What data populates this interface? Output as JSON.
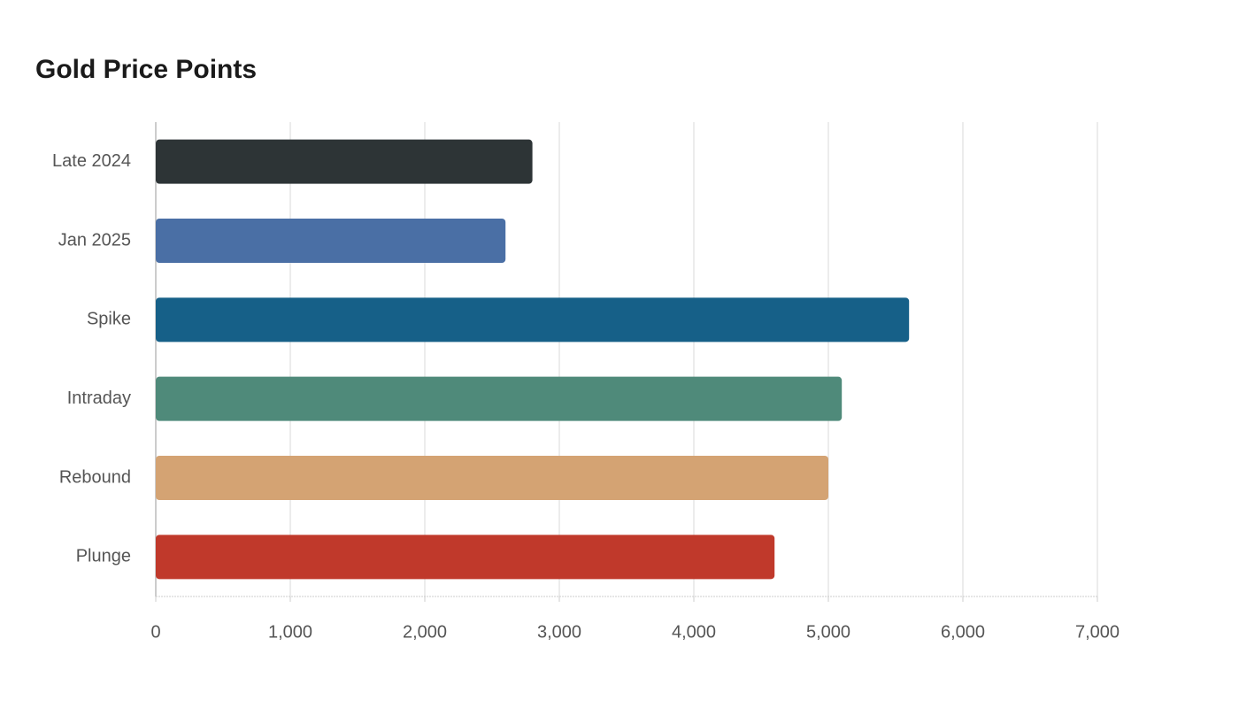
{
  "chart_data": {
    "type": "bar",
    "orientation": "horizontal",
    "title": "Gold Price Points",
    "categories": [
      "Late 2024",
      "Jan 2025",
      "Spike",
      "Intraday",
      "Rebound",
      "Plunge"
    ],
    "values": [
      2800,
      2600,
      5600,
      5100,
      5000,
      4600
    ],
    "colors": [
      "#2d3436",
      "#4a6fa5",
      "#166088",
      "#4f8a7a",
      "#d4a373",
      "#c0392b"
    ],
    "xlim": [
      0,
      7000
    ],
    "xticks": [
      0,
      {
        "value": 1000,
        "label": "1,000"
      },
      {
        "value": 2000,
        "label": "2,000"
      },
      {
        "value": 3000,
        "label": "3,000"
      },
      {
        "value": 4000,
        "label": "4,000"
      },
      {
        "value": 5000,
        "label": "5,000"
      },
      {
        "value": 6000,
        "label": "6,000"
      },
      {
        "value": 7000,
        "label": "7,000"
      }
    ],
    "grid": true
  }
}
